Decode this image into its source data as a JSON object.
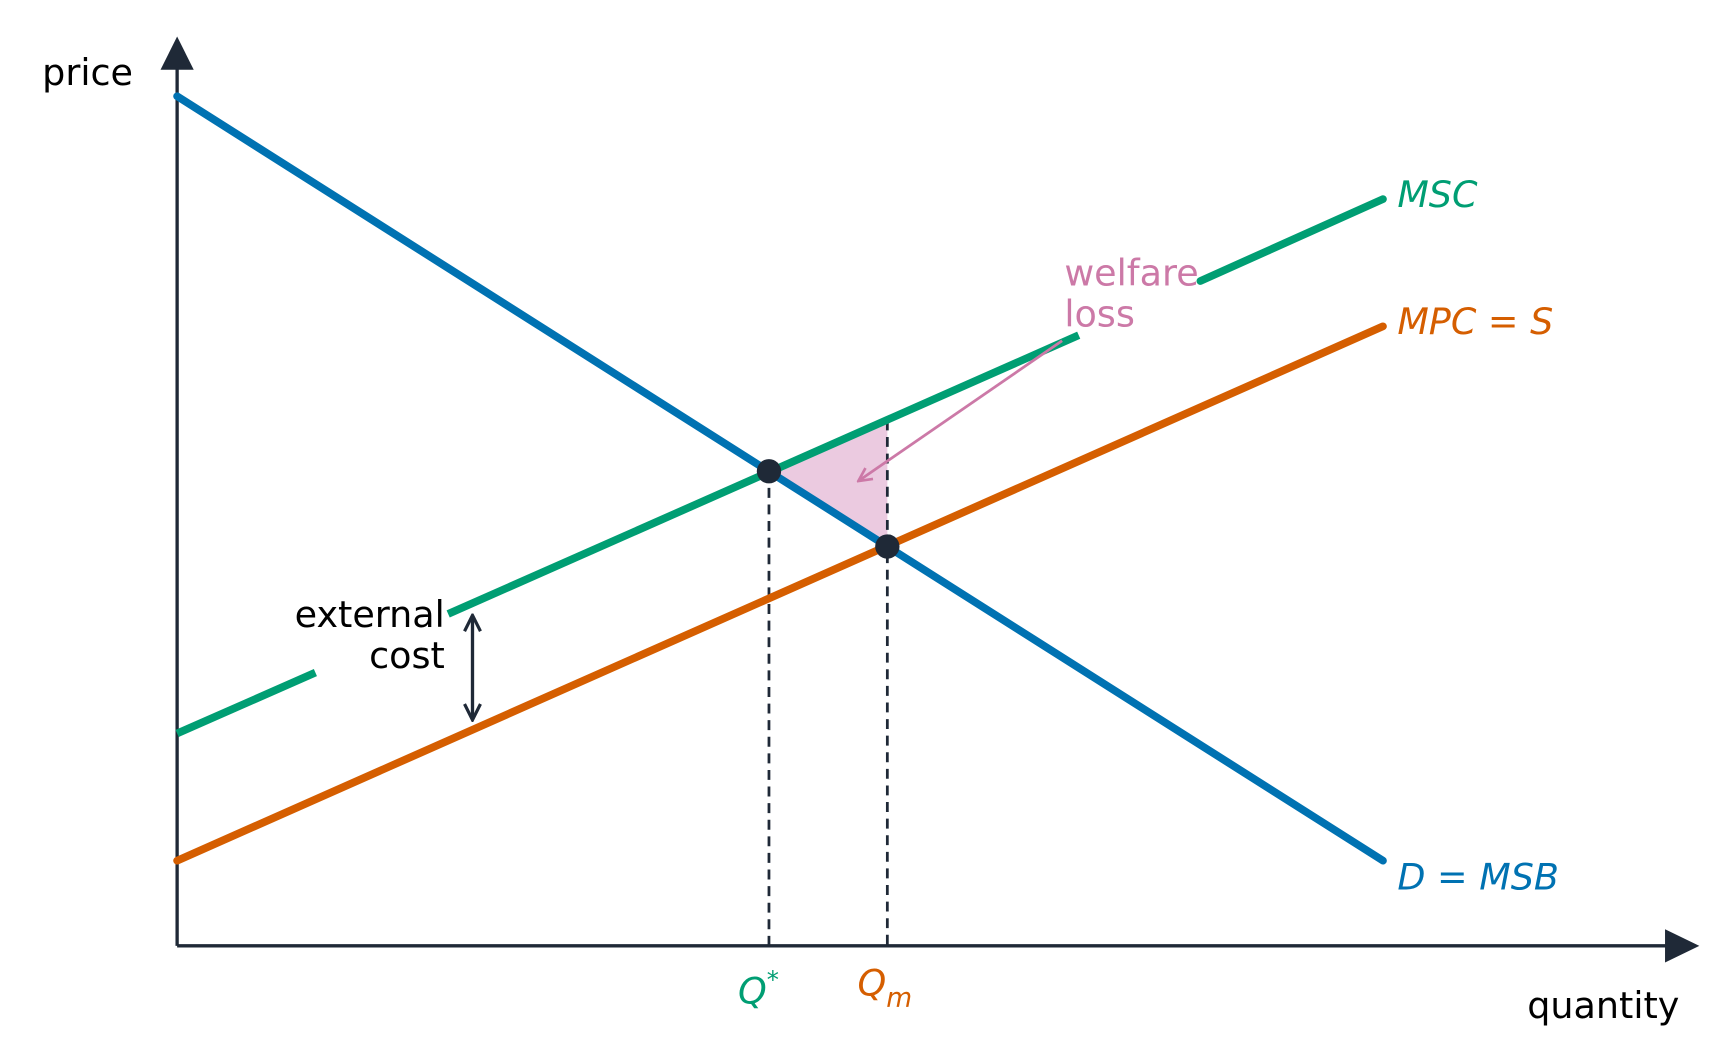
{
  "axes": {
    "y_label": "price",
    "x_label": "quantity"
  },
  "curves": {
    "msc": "MSC",
    "mpc": "MPC = S",
    "demand": "D = MSB"
  },
  "quantities": {
    "q_star": {
      "base": "Q",
      "sup": "*"
    },
    "q_m": {
      "base": "Q",
      "sub": "m"
    }
  },
  "annotations": {
    "external_cost": [
      "external",
      "cost"
    ],
    "welfare_loss": [
      "welfare",
      "loss"
    ]
  }
}
